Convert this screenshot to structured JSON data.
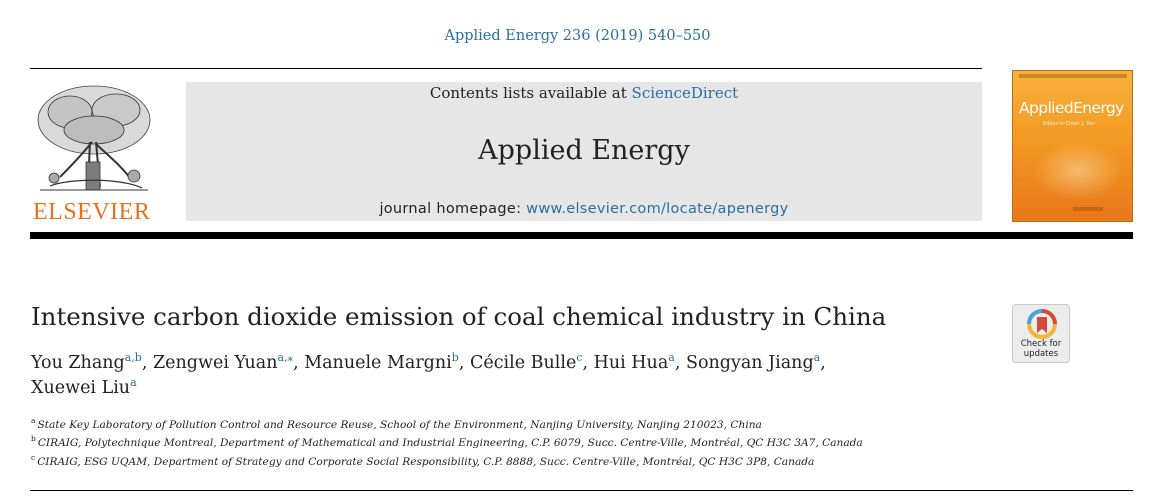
{
  "journal_ref": "Applied Energy 236 (2019) 540–550",
  "banner": {
    "contents_prefix": "Contents lists available at ",
    "contents_link": "ScienceDirect",
    "journal_title": "Applied Energy",
    "homepage_prefix": "journal homepage: ",
    "homepage_url": "www.elsevier.com/locate/apenergy"
  },
  "publisher_logo_text": "ELSEVIER",
  "cover": {
    "title": "AppliedEnergy",
    "subtitle": "Editor-in-Chief: J. Yan"
  },
  "check_updates": {
    "line1": "Check for",
    "line2": "updates"
  },
  "article": {
    "title": "Intensive carbon dioxide emission of coal chemical industry in China",
    "authors": [
      {
        "name": "You Zhang",
        "sup": "a,b",
        "sep": ", "
      },
      {
        "name": "Zengwei Yuan",
        "sup": "a,⁎",
        "sep": ", "
      },
      {
        "name": "Manuele Margni",
        "sup": "b",
        "sep": ", "
      },
      {
        "name": "Cécile Bulle",
        "sup": "c",
        "sep": ", "
      },
      {
        "name": "Hui Hua",
        "sup": "a",
        "sep": ", "
      },
      {
        "name": "Songyan Jiang",
        "sup": "a",
        "sep": ","
      },
      {
        "name": "Xuewei Liu",
        "sup": "a",
        "sep": ""
      }
    ],
    "affiliations": [
      {
        "mark": "a",
        "text": "State Key Laboratory of Pollution Control and Resource Reuse, School of the Environment, Nanjing University, Nanjing 210023, China"
      },
      {
        "mark": "b",
        "text": "CIRAIG, Polytechnique Montreal, Department of Mathematical and Industrial Engineering, C.P. 6079, Succ. Centre-Ville, Montréal, QC H3C 3A7, Canada"
      },
      {
        "mark": "c",
        "text": "CIRAIG, ESG UQAM, Department of Strategy and Corporate Social Responsibility, C.P. 8888, Succ. Centre-Ville, Montréal, QC H3C 3P8, Canada"
      }
    ]
  },
  "colors": {
    "link": "#2a6ea6",
    "elsevier_orange": "#e9711c",
    "banner_bg": "#e6e6e6",
    "cover_orange": "#f39a22"
  }
}
